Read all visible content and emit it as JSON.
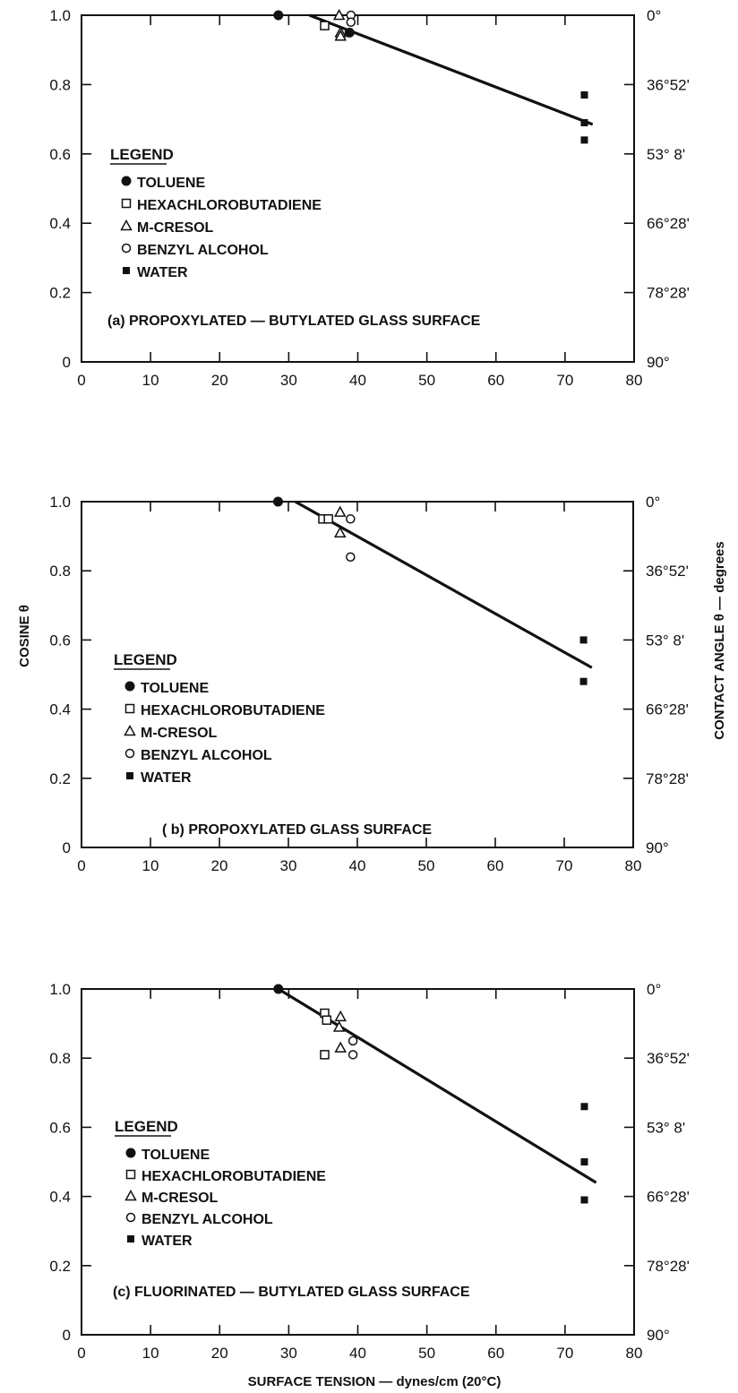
{
  "legend_labels": {
    "title": "LEGEND",
    "toluene": "TOLUENE",
    "hexachlorobutadiene": "HEXACHLOROBUTADIENE",
    "m_cresol": "M-CRESOL",
    "benzyl_alcohol": "BENZYL ALCOHOL",
    "water": "WATER"
  },
  "axes": {
    "x_tick_labels": [
      "0",
      "10",
      "20",
      "30",
      "40",
      "50",
      "60",
      "70",
      "80"
    ],
    "y_tick_labels": [
      "0",
      "0.2",
      "0.4",
      "0.6",
      "0.8",
      "1.0"
    ],
    "angle_tick_labels": [
      "0°",
      "36°52'",
      "53° 8'",
      "66°28'",
      "78°28'",
      "90°"
    ],
    "y_axis_title": "COSINE θ",
    "right_axis_title": "CONTACT ANGLE θ — degrees",
    "x_axis_title": "SURFACE TENSION — dynes/cm (20°C)"
  },
  "chart_data": [
    {
      "type": "scatter",
      "caption": "(a) PROPOXYLATED — BUTYLATED GLASS SURFACE",
      "xlim": [
        0,
        80
      ],
      "ylim": [
        0,
        1.0
      ],
      "grid": false,
      "legend_position": "center-left",
      "series": [
        {
          "name": "TOLUENE",
          "marker": "filled-circle",
          "points": [
            [
              28.5,
              1.0
            ],
            [
              38.8,
              0.95
            ]
          ]
        },
        {
          "name": "HEXACHLOROBUTADIENE",
          "marker": "open-square",
          "points": [
            [
              35.2,
              0.97
            ]
          ]
        },
        {
          "name": "M-CRESOL",
          "marker": "open-triangle",
          "points": [
            [
              37.3,
              1.0
            ],
            [
              37.5,
              0.95
            ],
            [
              37.5,
              0.94
            ]
          ]
        },
        {
          "name": "BENZYL ALCOHOL",
          "marker": "open-circle",
          "points": [
            [
              39.0,
              1.0
            ],
            [
              39.0,
              0.98
            ]
          ]
        },
        {
          "name": "WATER",
          "marker": "filled-square",
          "points": [
            [
              72.8,
              0.77
            ],
            [
              72.8,
              0.69
            ],
            [
              72.8,
              0.64
            ]
          ]
        }
      ],
      "fit_line": [
        [
          33.0,
          1.0
        ],
        [
          74.0,
          0.685
        ]
      ]
    },
    {
      "type": "scatter",
      "caption": "( b) PROPOXYLATED GLASS SURFACE",
      "xlim": [
        0,
        80
      ],
      "ylim": [
        0,
        1.0
      ],
      "grid": false,
      "legend_position": "center-left",
      "series": [
        {
          "name": "TOLUENE",
          "marker": "filled-circle",
          "points": [
            [
              28.5,
              1.0
            ]
          ]
        },
        {
          "name": "HEXACHLOROBUTADIENE",
          "marker": "open-square",
          "points": [
            [
              35.0,
              0.95
            ],
            [
              35.8,
              0.95
            ]
          ]
        },
        {
          "name": "M-CRESOL",
          "marker": "open-triangle",
          "points": [
            [
              37.5,
              0.97
            ],
            [
              37.5,
              0.91
            ]
          ]
        },
        {
          "name": "BENZYL ALCOHOL",
          "marker": "open-circle",
          "points": [
            [
              39.0,
              0.95
            ],
            [
              39.0,
              0.84
            ]
          ]
        },
        {
          "name": "WATER",
          "marker": "filled-square",
          "points": [
            [
              72.8,
              0.6
            ],
            [
              72.8,
              0.48
            ]
          ]
        }
      ],
      "fit_line": [
        [
          31.0,
          1.0
        ],
        [
          74.0,
          0.52
        ]
      ]
    },
    {
      "type": "scatter",
      "caption": "(c) FLUORINATED — BUTYLATED GLASS SURFACE",
      "xlim": [
        0,
        80
      ],
      "ylim": [
        0,
        1.0
      ],
      "grid": false,
      "legend_position": "center-left",
      "series": [
        {
          "name": "TOLUENE",
          "marker": "filled-circle",
          "points": [
            [
              28.5,
              1.0
            ]
          ]
        },
        {
          "name": "HEXACHLOROBUTADIENE",
          "marker": "open-square",
          "points": [
            [
              35.2,
              0.93
            ],
            [
              35.5,
              0.91
            ],
            [
              35.2,
              0.81
            ]
          ]
        },
        {
          "name": "M-CRESOL",
          "marker": "open-triangle",
          "points": [
            [
              37.5,
              0.92
            ],
            [
              37.3,
              0.89
            ],
            [
              37.5,
              0.83
            ]
          ]
        },
        {
          "name": "BENZYL ALCOHOL",
          "marker": "open-circle",
          "points": [
            [
              39.3,
              0.85
            ],
            [
              39.3,
              0.81
            ]
          ]
        },
        {
          "name": "WATER",
          "marker": "filled-square",
          "points": [
            [
              72.8,
              0.66
            ],
            [
              72.8,
              0.5
            ],
            [
              72.8,
              0.39
            ]
          ]
        }
      ],
      "fit_line": [
        [
          28.5,
          1.0
        ],
        [
          74.5,
          0.44
        ]
      ]
    }
  ]
}
